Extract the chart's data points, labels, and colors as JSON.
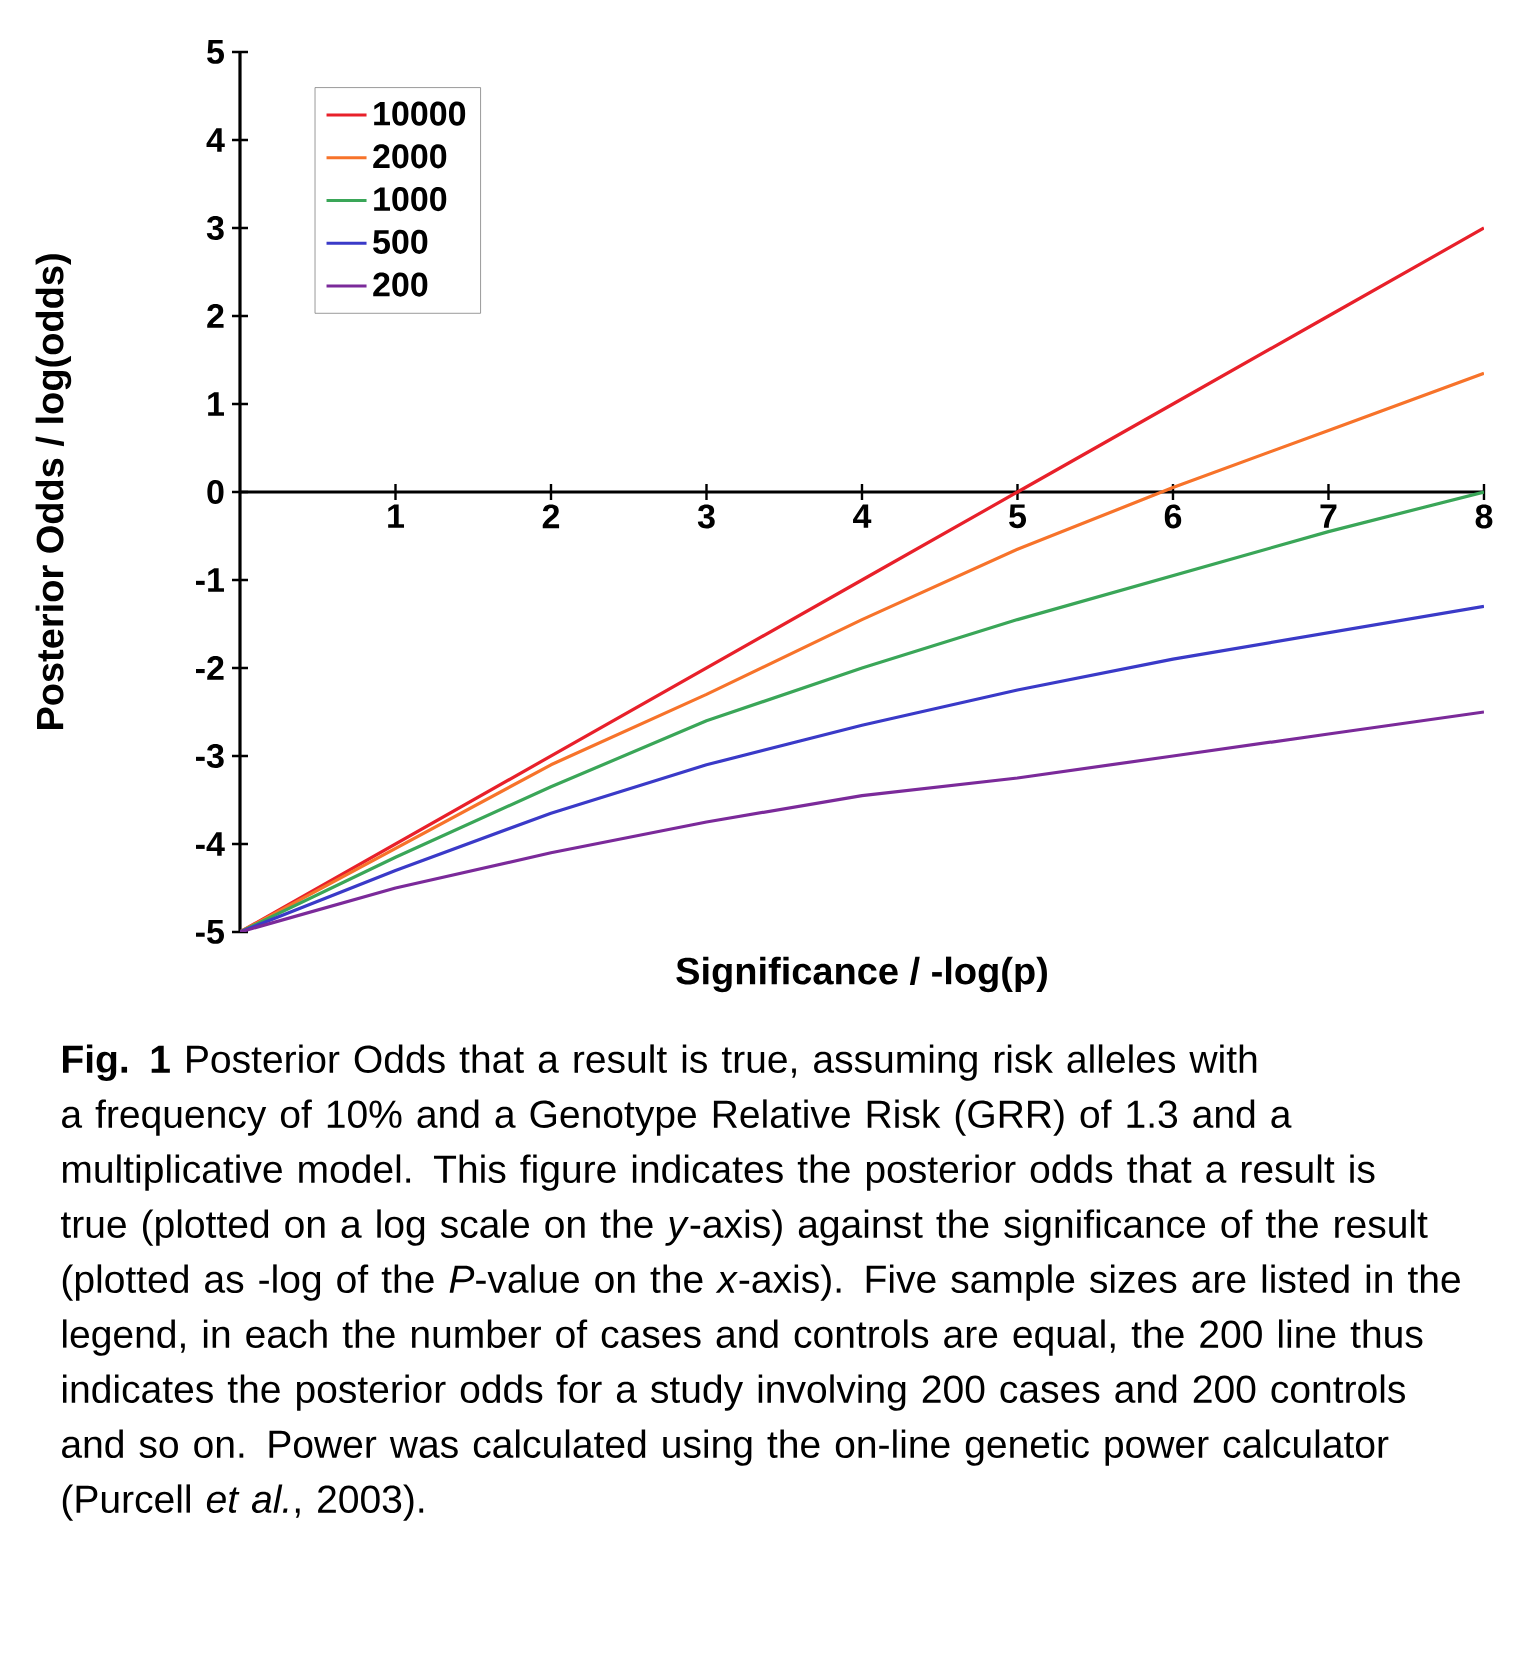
{
  "chart_data": {
    "type": "line",
    "xlabel": "Significance / -log(p)",
    "ylabel": "Posterior Odds / log(odds)",
    "x": [
      0,
      1,
      2,
      3,
      4,
      5,
      6,
      7,
      8
    ],
    "series": [
      {
        "name": "10000",
        "color": "#e8202a",
        "values": [
          -5,
          -4.0,
          -3.0,
          -2.0,
          -1.0,
          0,
          1.0,
          2.0,
          3.0
        ]
      },
      {
        "name": "2000",
        "color": "#f7732a",
        "values": [
          -5,
          -4.05,
          -3.1,
          -2.3,
          -1.45,
          -0.65,
          0.05,
          0.7,
          1.35
        ]
      },
      {
        "name": "1000",
        "color": "#3aa658",
        "values": [
          -5,
          -4.15,
          -3.35,
          -2.6,
          -2.0,
          -1.45,
          -0.95,
          -0.45,
          0
        ]
      },
      {
        "name": "500",
        "color": "#3a3ac8",
        "values": [
          -5,
          -4.3,
          -3.65,
          -3.1,
          -2.65,
          -2.25,
          -1.9,
          -1.6,
          -1.3
        ]
      },
      {
        "name": "200",
        "color": "#7b2a9a",
        "values": [
          -5,
          -4.5,
          -4.1,
          -3.75,
          -3.45,
          -3.25,
          -3.0,
          -2.75,
          -2.5
        ]
      }
    ],
    "xlim": [
      0,
      8
    ],
    "ylim": [
      -5,
      5
    ],
    "xticks": [
      1,
      2,
      3,
      4,
      5,
      6,
      7,
      8
    ],
    "yticks": [
      -5,
      -4,
      -3,
      -2,
      -1,
      0,
      1,
      2,
      3,
      4,
      5
    ],
    "legend": "top left",
    "annotations": [
      "**Fig. 1** Posterior Odds that a result is true, assuming risk alleles with a frequency of 10% and a Genotype Relative Risk (GRR) of 1.3 and a multiplicative model. This figure indicates the posterior odds that a result is true (plotted on a log scale on the *y*-axis) against the significance of the result (plotted as -log of the *P*-value on the *x*-axis). Five sample sizes are listed in the legend, in each the number of cases and controls are equal, the 200 line thus indicates the posterior odds for a study involving 200 cases and 200 controls and so on. Power was calculated using the on-line genetic power calculator (Purcell *et al.*, 2003)."
    ]
  }
}
